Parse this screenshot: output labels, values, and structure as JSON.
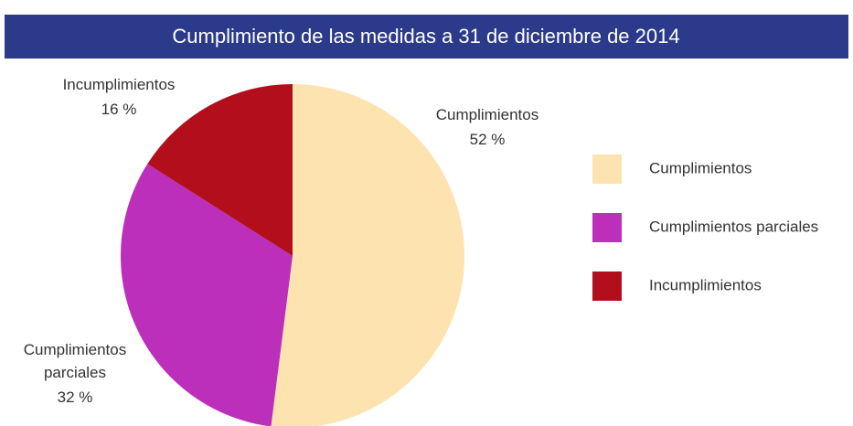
{
  "chart_data": {
    "type": "pie",
    "title": "Cumplimiento de las medidas a 31 de diciembre de 2014",
    "categories": [
      "Cumplimientos",
      "Cumplimientos parciales",
      "Incumplimientos"
    ],
    "values": [
      52,
      32,
      16
    ],
    "value_labels": [
      "52 %",
      "32 %",
      "16 %"
    ],
    "colors": [
      "#fde3b0",
      "#bb2fbb",
      "#b30e1b"
    ],
    "legend": "right"
  }
}
